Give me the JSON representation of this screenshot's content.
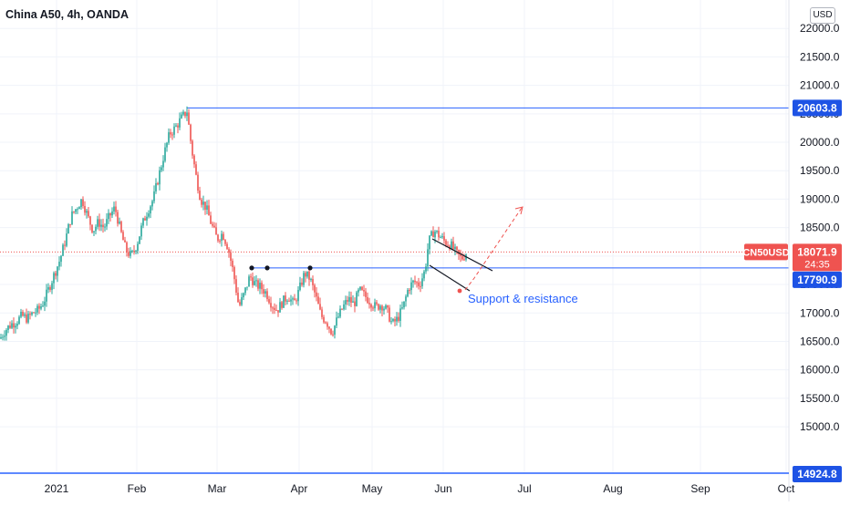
{
  "header": {
    "title": "China A50, 4h, OANDA",
    "currency_button": "USD"
  },
  "annotations": {
    "support_label": "Support & resistance",
    "level_high": "20603.8",
    "level_support": "17790.9",
    "symbol_tag": "CN50USD",
    "last_price": "18071.9",
    "countdown": "24:35",
    "level_bottom": "14924.8"
  },
  "colors": {
    "up": "#26a69a",
    "down": "#ef5350",
    "line": "#2962ff",
    "level_tag": "#1e53e5",
    "price_tag": "#ef5350",
    "support_text": "#2962ff"
  },
  "chart_data": {
    "type": "candlestick",
    "title": "China A50, 4h, OANDA",
    "xlabel": "",
    "ylabel": "",
    "ylim": [
      14200,
      22500
    ],
    "x_ticks": [
      "2021",
      "Feb",
      "Mar",
      "Apr",
      "May",
      "Jun",
      "Jul",
      "Aug",
      "Sep",
      "Oct"
    ],
    "y_ticks": [
      "15000.0",
      "15500.0",
      "16000.0",
      "16500.0",
      "17000.0",
      "17500.0",
      "18000.0",
      "18500.0",
      "19000.0",
      "19500.0",
      "20000.0",
      "20500.0",
      "21000.0",
      "21500.0",
      "22000.0"
    ],
    "y_tick_values": [
      15000,
      15500,
      16000,
      16500,
      17000,
      17500,
      18000,
      18500,
      19000,
      19500,
      20000,
      20500,
      21000,
      21500,
      22000
    ],
    "price_path": [
      [
        0,
        16550
      ],
      [
        6,
        16700
      ],
      [
        12,
        16800
      ],
      [
        18,
        16850
      ],
      [
        24,
        16950
      ],
      [
        30,
        16900
      ],
      [
        36,
        17000
      ],
      [
        42,
        17050
      ],
      [
        48,
        17200
      ],
      [
        54,
        17450
      ],
      [
        60,
        17700
      ],
      [
        66,
        17950
      ],
      [
        72,
        18300
      ],
      [
        78,
        18700
      ],
      [
        84,
        18850
      ],
      [
        90,
        19000
      ],
      [
        96,
        18700
      ],
      [
        102,
        18450
      ],
      [
        108,
        18600
      ],
      [
        114,
        18500
      ],
      [
        120,
        18700
      ],
      [
        126,
        18850
      ],
      [
        132,
        18450
      ],
      [
        138,
        18100
      ],
      [
        144,
        18000
      ],
      [
        150,
        18200
      ],
      [
        156,
        18550
      ],
      [
        162,
        18800
      ],
      [
        168,
        19000
      ],
      [
        174,
        19400
      ],
      [
        180,
        19800
      ],
      [
        186,
        20150
      ],
      [
        192,
        20250
      ],
      [
        198,
        20400
      ],
      [
        205,
        20550
      ],
      [
        210,
        19900
      ],
      [
        215,
        19400
      ],
      [
        220,
        19000
      ],
      [
        226,
        18850
      ],
      [
        232,
        18550
      ],
      [
        238,
        18300
      ],
      [
        244,
        18400
      ],
      [
        250,
        18150
      ],
      [
        256,
        17700
      ],
      [
        262,
        17100
      ],
      [
        268,
        17350
      ],
      [
        274,
        17650
      ],
      [
        280,
        17500
      ],
      [
        286,
        17450
      ],
      [
        292,
        17350
      ],
      [
        298,
        17150
      ],
      [
        304,
        17050
      ],
      [
        310,
        17200
      ],
      [
        316,
        17300
      ],
      [
        322,
        17150
      ],
      [
        328,
        17400
      ],
      [
        334,
        17700
      ],
      [
        340,
        17600
      ],
      [
        346,
        17300
      ],
      [
        352,
        16950
      ],
      [
        358,
        16850
      ],
      [
        364,
        16650
      ],
      [
        370,
        16900
      ],
      [
        376,
        17100
      ],
      [
        382,
        17250
      ],
      [
        388,
        17150
      ],
      [
        394,
        17400
      ],
      [
        400,
        17300
      ],
      [
        406,
        17200
      ],
      [
        412,
        17100
      ],
      [
        418,
        17150
      ],
      [
        424,
        17050
      ],
      [
        430,
        16800
      ],
      [
        436,
        16900
      ],
      [
        442,
        17100
      ],
      [
        448,
        17450
      ],
      [
        454,
        17550
      ],
      [
        460,
        17500
      ],
      [
        466,
        17750
      ],
      [
        470,
        18250
      ],
      [
        476,
        18450
      ],
      [
        482,
        18350
      ],
      [
        488,
        18250
      ],
      [
        494,
        18200
      ],
      [
        500,
        18050
      ],
      [
        506,
        17950
      ],
      [
        512,
        18071.9
      ]
    ],
    "support_resistance": 17790.9,
    "resistance_high": 20603.8,
    "last_price": 18071.9
  }
}
